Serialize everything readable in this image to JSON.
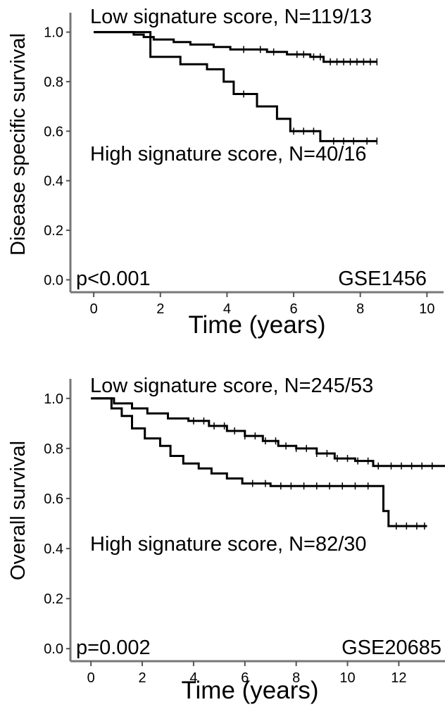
{
  "chart_data": [
    {
      "type": "line",
      "subtype": "kaplan-meier",
      "title": "",
      "xlabel": "Time (years)",
      "ylabel": "Disease specific survival",
      "xlim": [
        -0.7,
        10.5
      ],
      "ylim": [
        -0.05,
        1.05
      ],
      "xticks": [
        0,
        2,
        4,
        6,
        8,
        10
      ],
      "yticks": [
        "0.0",
        "0.2",
        "0.4",
        "0.6",
        "0.8",
        "1.0"
      ],
      "grid": false,
      "annotations": {
        "low": "Low signature score, N=119/13",
        "high": "High signature score, N=40/16",
        "pvalue": "p<0.001",
        "dataset": "GSE1456"
      },
      "series": [
        {
          "group": "low",
          "x": [
            0,
            1.2,
            1.2,
            1.5,
            1.5,
            1.8,
            1.8,
            2.4,
            2.4,
            2.9,
            2.9,
            3.6,
            3.6,
            4.1,
            4.1,
            5.2,
            5.2,
            5.8,
            5.8,
            6.5,
            6.5,
            6.9,
            6.9,
            8.5
          ],
          "y": [
            1.0,
            1.0,
            0.99,
            0.99,
            0.98,
            0.98,
            0.97,
            0.97,
            0.96,
            0.96,
            0.95,
            0.95,
            0.94,
            0.94,
            0.93,
            0.93,
            0.92,
            0.92,
            0.91,
            0.91,
            0.9,
            0.9,
            0.88,
            0.88
          ],
          "censor": [
            4.5,
            5.0,
            5.4,
            6.1,
            6.3,
            6.6,
            6.8,
            7.1,
            7.3,
            7.5,
            7.7,
            7.9,
            8.1,
            8.3,
            8.5
          ]
        },
        {
          "group": "high",
          "x": [
            0,
            1.7,
            1.7,
            2.6,
            2.6,
            3.4,
            3.4,
            3.9,
            3.9,
            4.2,
            4.2,
            4.9,
            4.9,
            5.5,
            5.5,
            5.9,
            5.9,
            6.8,
            6.8,
            8.5
          ],
          "y": [
            1.0,
            1.0,
            0.9,
            0.9,
            0.87,
            0.87,
            0.85,
            0.85,
            0.8,
            0.8,
            0.75,
            0.75,
            0.7,
            0.7,
            0.65,
            0.65,
            0.6,
            0.6,
            0.56,
            0.56
          ],
          "censor": [
            4.5,
            6.0,
            6.3,
            6.6,
            7.2,
            7.5,
            7.8,
            8.2,
            8.5
          ]
        }
      ]
    },
    {
      "type": "line",
      "subtype": "kaplan-meier",
      "title": "",
      "xlabel": "Time (years)",
      "ylabel": "Overall survival",
      "xlim": [
        -0.8,
        13.8
      ],
      "ylim": [
        -0.05,
        1.05
      ],
      "xticks": [
        0,
        2,
        4,
        6,
        8,
        10,
        12
      ],
      "yticks": [
        "0.0",
        "0.2",
        "0.4",
        "0.6",
        "0.8",
        "1.0"
      ],
      "grid": false,
      "annotations": {
        "low": "Low signature score, N=245/53",
        "high": "High signature score, N=82/30",
        "pvalue": "p=0.002",
        "dataset": "GSE20685"
      },
      "series": [
        {
          "group": "low",
          "x": [
            0,
            0.9,
            0.9,
            1.6,
            1.6,
            2.2,
            2.2,
            3.0,
            3.0,
            3.8,
            3.8,
            4.6,
            4.6,
            5.3,
            5.3,
            6.0,
            6.0,
            6.7,
            6.7,
            7.3,
            7.3,
            8.0,
            8.0,
            8.8,
            8.8,
            9.5,
            9.5,
            10.3,
            10.3,
            11.0,
            11.0,
            11.6,
            11.6,
            13.8
          ],
          "y": [
            1.0,
            1.0,
            0.98,
            0.98,
            0.96,
            0.96,
            0.94,
            0.94,
            0.92,
            0.92,
            0.91,
            0.91,
            0.89,
            0.89,
            0.87,
            0.87,
            0.85,
            0.85,
            0.83,
            0.83,
            0.81,
            0.81,
            0.8,
            0.8,
            0.78,
            0.78,
            0.76,
            0.76,
            0.75,
            0.75,
            0.73,
            0.73,
            0.73,
            0.73
          ],
          "censor": [
            4.0,
            4.4,
            4.8,
            5.2,
            5.6,
            6.0,
            6.4,
            6.8,
            7.2,
            7.6,
            8.0,
            8.4,
            8.8,
            9.2,
            9.6,
            10.0,
            10.4,
            10.8,
            11.2,
            11.7,
            12.1,
            12.5,
            12.9,
            13.3
          ]
        },
        {
          "group": "high",
          "x": [
            0,
            0.8,
            0.8,
            1.2,
            1.2,
            1.6,
            1.6,
            2.1,
            2.1,
            2.7,
            2.7,
            3.1,
            3.1,
            3.6,
            3.6,
            4.2,
            4.2,
            4.7,
            4.7,
            5.3,
            5.3,
            5.9,
            5.9,
            7.0,
            7.0,
            11.4,
            11.4,
            11.6,
            11.6,
            13.1
          ],
          "y": [
            1.0,
            1.0,
            0.96,
            0.96,
            0.93,
            0.93,
            0.88,
            0.88,
            0.84,
            0.84,
            0.81,
            0.81,
            0.77,
            0.77,
            0.74,
            0.74,
            0.72,
            0.72,
            0.7,
            0.7,
            0.68,
            0.68,
            0.66,
            0.66,
            0.65,
            0.65,
            0.55,
            0.55,
            0.49,
            0.49
          ],
          "censor": [
            6.3,
            6.8,
            7.4,
            7.8,
            8.3,
            8.8,
            9.3,
            9.8,
            10.3,
            10.8,
            11.9,
            12.3,
            12.7,
            13.0
          ]
        }
      ]
    }
  ]
}
